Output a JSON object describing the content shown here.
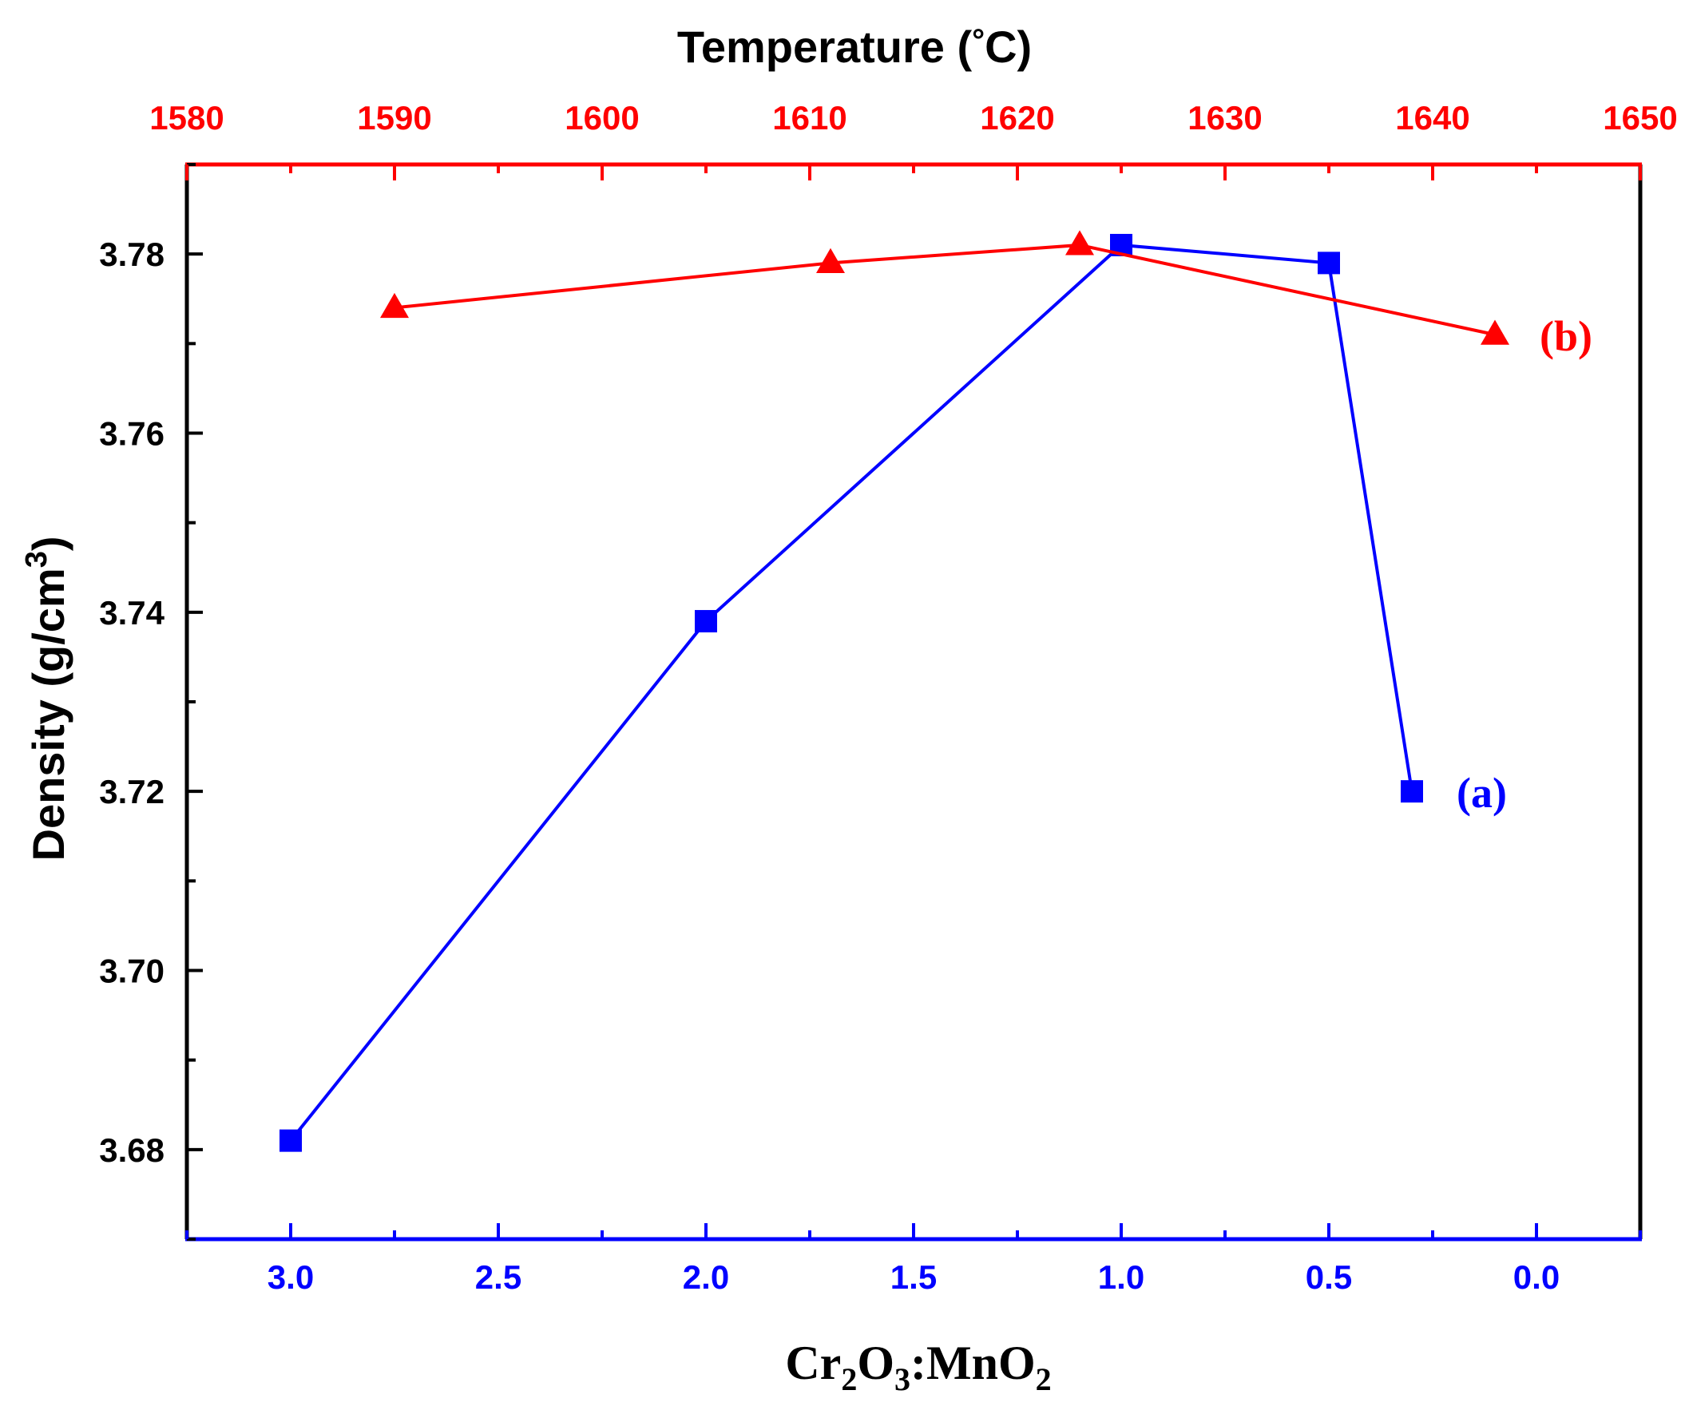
{
  "chart_data": {
    "type": "line",
    "title": "",
    "ylabel": {
      "text": "Density (g/cm",
      "superscript": "3",
      "suffix": ")"
    },
    "xlabel_bottom": {
      "parts": [
        {
          "text": "Cr",
          "sub": false
        },
        {
          "text": "2",
          "sub": true
        },
        {
          "text": "O",
          "sub": false
        },
        {
          "text": "3",
          "sub": true
        },
        {
          "text": ":MnO",
          "sub": false
        },
        {
          "text": "2",
          "sub": true
        }
      ],
      "color": "#000000"
    },
    "xlabel_top": {
      "text": "Temperature (",
      "degree": "°",
      "suffix": "C)",
      "color": "#000000"
    },
    "y_axis": {
      "range": [
        3.67,
        3.79
      ],
      "major_ticks": [
        3.68,
        3.7,
        3.72,
        3.74,
        3.76,
        3.78
      ],
      "tick_labels": [
        "3.68",
        "3.70",
        "3.72",
        "3.74",
        "3.76",
        "3.78"
      ],
      "minor_step": 0.01,
      "color": "#000000"
    },
    "x_bottom_axis": {
      "range": [
        3.25,
        -0.25
      ],
      "reversed": true,
      "major_ticks": [
        3.0,
        2.5,
        2.0,
        1.5,
        1.0,
        0.5,
        0.0
      ],
      "tick_labels": [
        "3.0",
        "2.5",
        "2.0",
        "1.5",
        "1.0",
        "0.5",
        "0.0"
      ],
      "minor_step": 0.25,
      "color": "#0000ff"
    },
    "x_top_axis": {
      "range": [
        1580,
        1650
      ],
      "major_ticks": [
        1580,
        1590,
        1600,
        1610,
        1620,
        1630,
        1640,
        1650
      ],
      "tick_labels": [
        "1580",
        "1590",
        "1600",
        "1610",
        "1620",
        "1630",
        "1640",
        "1650"
      ],
      "minor_step": 5,
      "color": "#ff0000"
    },
    "series": [
      {
        "name": "(a)",
        "axis": "bottom",
        "marker": "square",
        "color": "#0000ff",
        "x": [
          3.0,
          2.0,
          1.0,
          0.5,
          0.3
        ],
        "y": [
          3.681,
          3.739,
          3.781,
          3.779,
          3.72
        ]
      },
      {
        "name": "(b)",
        "axis": "top",
        "marker": "triangle",
        "color": "#ff0000",
        "x": [
          1590,
          1611,
          1623,
          1643
        ],
        "y": [
          3.774,
          3.779,
          3.781,
          3.771
        ]
      }
    ],
    "annotations": [
      {
        "text": "(a)",
        "series": "(a)",
        "color": "#0000ff"
      },
      {
        "text": "(b)",
        "series": "(b)",
        "color": "#ff0000"
      }
    ],
    "grid": false,
    "legend": "none"
  }
}
